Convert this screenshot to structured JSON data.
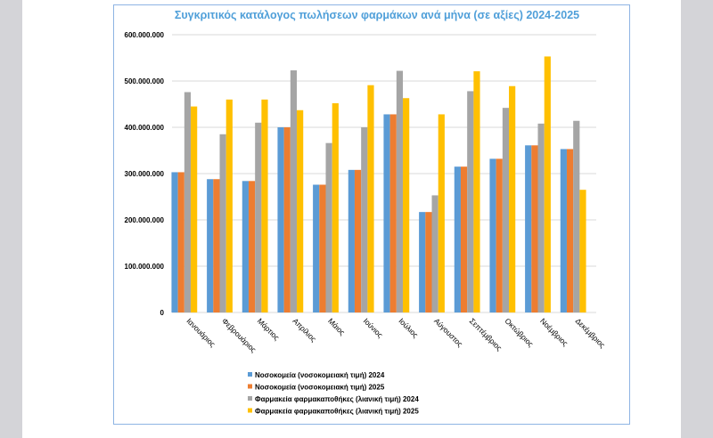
{
  "chart_data": {
    "type": "bar",
    "title": "Συγκριτικός κατάλογος πωλήσεων φαρμάκων ανά μήνα (σε αξίες) 2024-2025",
    "title_color": "#4f9fd9",
    "xlabel": "",
    "ylabel": "",
    "ylim": [
      0,
      600000000
    ],
    "yticks": [
      0,
      100000000,
      200000000,
      300000000,
      400000000,
      500000000,
      600000000
    ],
    "ytick_labels": [
      "0",
      "100.000.000",
      "200.000.000",
      "300.000.000",
      "400.000.000",
      "500.000.000",
      "600.000.000"
    ],
    "grid": true,
    "legend_position": "bottom",
    "categories": [
      "Ιανουάριος",
      "Φεβρουάριος",
      "Μάρτιος",
      "Απρίλιος",
      "Μάιος",
      "Ιούνιος",
      "Ιούλιος",
      "Αύγουστος",
      "Σεπτέμβριος",
      "Οκτώβριος",
      "Νοέμβριος",
      "Δεκέμβριος"
    ],
    "series": [
      {
        "name": "Νοσοκομεία  (νοσοκομειακή τιμή) 2024",
        "color": "#5b9bd5",
        "values": [
          303000000,
          288000000,
          284000000,
          400000000,
          276000000,
          308000000,
          428000000,
          217000000,
          315000000,
          332000000,
          361000000,
          353000000
        ]
      },
      {
        "name": "Νοσοκομεία  (νοσοκομειακή τιμή) 2025",
        "color": "#ed7d31",
        "values": [
          303000000,
          288000000,
          284000000,
          400000000,
          276000000,
          308000000,
          428000000,
          217000000,
          315000000,
          332000000,
          361000000,
          353000000
        ]
      },
      {
        "name": "Φαρμακεία φαρμακαποθήκες (λιανική τιμή) 2024",
        "color": "#a5a5a5",
        "values": [
          476000000,
          385000000,
          410000000,
          523000000,
          366000000,
          400000000,
          522000000,
          253000000,
          478000000,
          442000000,
          408000000,
          414000000
        ]
      },
      {
        "name": "Φαρμακεία φαρμακαποθήκες (λιανική τιμή) 2025",
        "color": "#ffc000",
        "values": [
          445000000,
          460000000,
          460000000,
          437000000,
          452000000,
          491000000,
          463000000,
          428000000,
          521000000,
          489000000,
          553000000,
          265000000
        ]
      }
    ]
  }
}
